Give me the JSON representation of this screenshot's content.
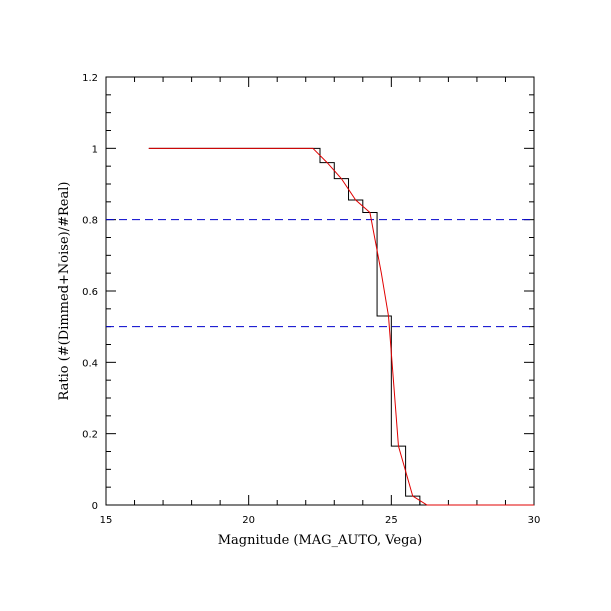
{
  "chart_data": {
    "type": "line",
    "title": "",
    "xlabel": "Magnitude (MAG_AUTO, Vega)",
    "ylabel": "Ratio (#(Dimmed+Noise)/#Real)",
    "xlim": [
      15,
      30
    ],
    "ylim": [
      0,
      1.2
    ],
    "x_ticks": [
      15,
      20,
      25,
      30
    ],
    "x_tick_labels": [
      "15",
      "20",
      "25",
      "30"
    ],
    "y_ticks": [
      0,
      0.2,
      0.4,
      0.6,
      0.8,
      1,
      1.2
    ],
    "y_tick_labels": [
      "0",
      "0.2",
      "0.4",
      "0.6",
      "0.8",
      "1",
      "1.2"
    ],
    "grid": false,
    "colors": {
      "histogram": "#000000",
      "fit": "#e00000",
      "reference": "#0000cc"
    },
    "series": [
      {
        "style": "step",
        "x": [
          16.5,
          22.5,
          22.5,
          23.0,
          23.0,
          23.5,
          23.5,
          24.0,
          24.0,
          24.5,
          24.5,
          24.8,
          24.8,
          25.0,
          25.0,
          25.5,
          25.5,
          26.0,
          26.0,
          30.0
        ],
        "y": [
          1.0,
          1.0,
          0.96,
          0.96,
          0.915,
          0.915,
          0.855,
          0.855,
          0.82,
          0.82,
          0.53,
          0.53,
          0.53,
          0.53,
          0.165,
          0.165,
          0.025,
          0.025,
          0.0,
          0.0
        ]
      },
      {
        "style": "line",
        "x": [
          16.5,
          22.25,
          22.75,
          23.25,
          23.75,
          24.25,
          24.65,
          24.9,
          25.25,
          25.75,
          26.25,
          30.0
        ],
        "y": [
          1.0,
          1.0,
          0.96,
          0.915,
          0.855,
          0.82,
          0.65,
          0.53,
          0.165,
          0.025,
          0.0,
          0.0
        ]
      }
    ],
    "reference_lines": [
      {
        "y": 0.8,
        "style": "dashed"
      },
      {
        "y": 0.5,
        "style": "dashed"
      }
    ]
  }
}
